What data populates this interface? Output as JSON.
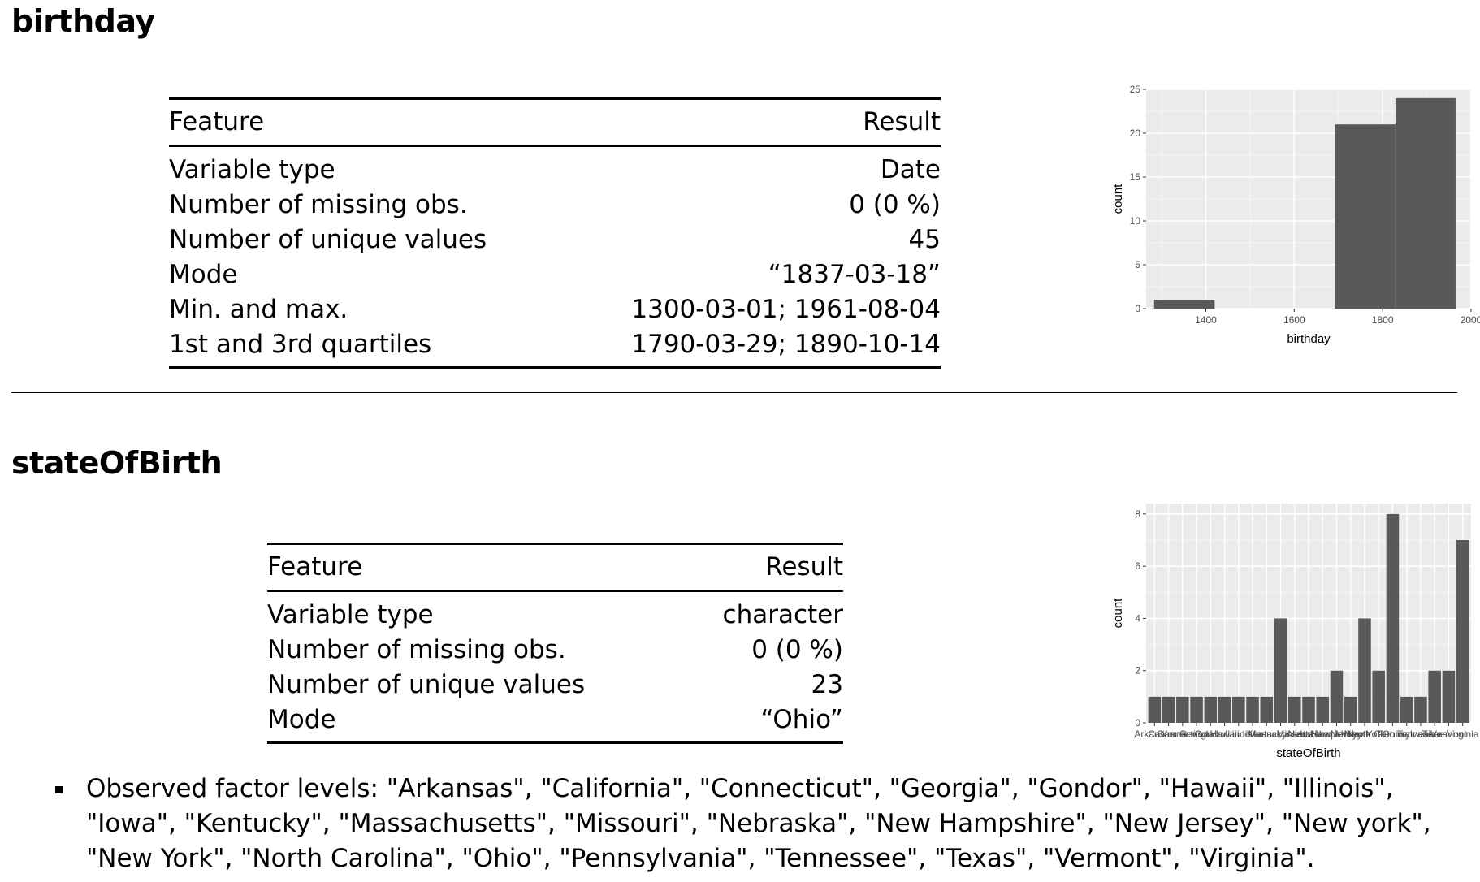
{
  "sections": [
    {
      "title": "birthday",
      "table": {
        "header": [
          "Feature",
          "Result"
        ],
        "rows": [
          [
            "Variable type",
            "Date"
          ],
          [
            "Number of missing obs.",
            "0 (0 %)"
          ],
          [
            "Number of unique values",
            "45"
          ],
          [
            "Mode",
            "“1837-03-18”"
          ],
          [
            "Min. and max.",
            "1300-03-01; 1961-08-04"
          ],
          [
            "1st and 3rd quartiles",
            "1790-03-29; 1890-10-14"
          ]
        ]
      }
    },
    {
      "title": "stateOfBirth",
      "table": {
        "header": [
          "Feature",
          "Result"
        ],
        "rows": [
          [
            "Variable type",
            "character"
          ],
          [
            "Number of missing obs.",
            "0 (0 %)"
          ],
          [
            "Number of unique values",
            "23"
          ],
          [
            "Mode",
            "“Ohio”"
          ]
        ]
      },
      "note": "Observed factor levels: \"Arkansas\", \"California\", \"Connecticut\", \"Georgia\", \"Gondor\", \"Hawaii\", \"Illinois\", \"Iowa\", \"Kentucky\", \"Massachusetts\", \"Missouri\", \"Nebraska\", \"New Hampshire\", \"New Jersey\", \"New york\", \"New York\", \"North Carolina\", \"Ohio\", \"Pennsylvania\", \"Tennessee\", \"Texas\", \"Vermont\", \"Virginia\"."
    }
  ],
  "chart_data": [
    {
      "type": "bar",
      "subtype": "histogram",
      "xlabel": "birthday",
      "ylabel": "count",
      "xlim": [
        1265,
        2000
      ],
      "ylim": [
        0,
        25
      ],
      "x_ticks": [
        1400,
        1600,
        1800,
        2000
      ],
      "y_ticks": [
        0,
        5,
        10,
        15,
        20,
        25
      ],
      "bins": [
        {
          "x0": 1283,
          "x1": 1420,
          "count": 1
        },
        {
          "x0": 1420,
          "x1": 1556,
          "count": 0
        },
        {
          "x0": 1556,
          "x1": 1692,
          "count": 0
        },
        {
          "x0": 1692,
          "x1": 1829,
          "count": 21
        },
        {
          "x0": 1829,
          "x1": 1965,
          "count": 24
        }
      ],
      "grid": true,
      "bar_color": "#595959",
      "panel_color": "#EBEBEB"
    },
    {
      "type": "bar",
      "xlabel": "stateOfBirth",
      "ylabel": "count",
      "ylim": [
        0,
        8.4
      ],
      "y_ticks": [
        0,
        2,
        4,
        6,
        8
      ],
      "categories": [
        "Arkansas",
        "California",
        "Connecticut",
        "Georgia",
        "Gondor",
        "Hawaii",
        "Illinois",
        "Iowa",
        "Kentucky",
        "Massachusetts",
        "Missouri",
        "Nebraska",
        "New Hampshire",
        "New Jersey",
        "New york",
        "New York",
        "North Carolina",
        "Ohio",
        "Pennsylvania",
        "Tennessee",
        "Texas",
        "Vermont",
        "Virginia"
      ],
      "values": [
        1,
        1,
        1,
        1,
        1,
        1,
        1,
        1,
        1,
        4,
        1,
        1,
        1,
        2,
        1,
        4,
        2,
        8,
        1,
        1,
        2,
        2,
        7
      ],
      "grid": true,
      "bar_color": "#595959",
      "panel_color": "#EBEBEB"
    }
  ]
}
